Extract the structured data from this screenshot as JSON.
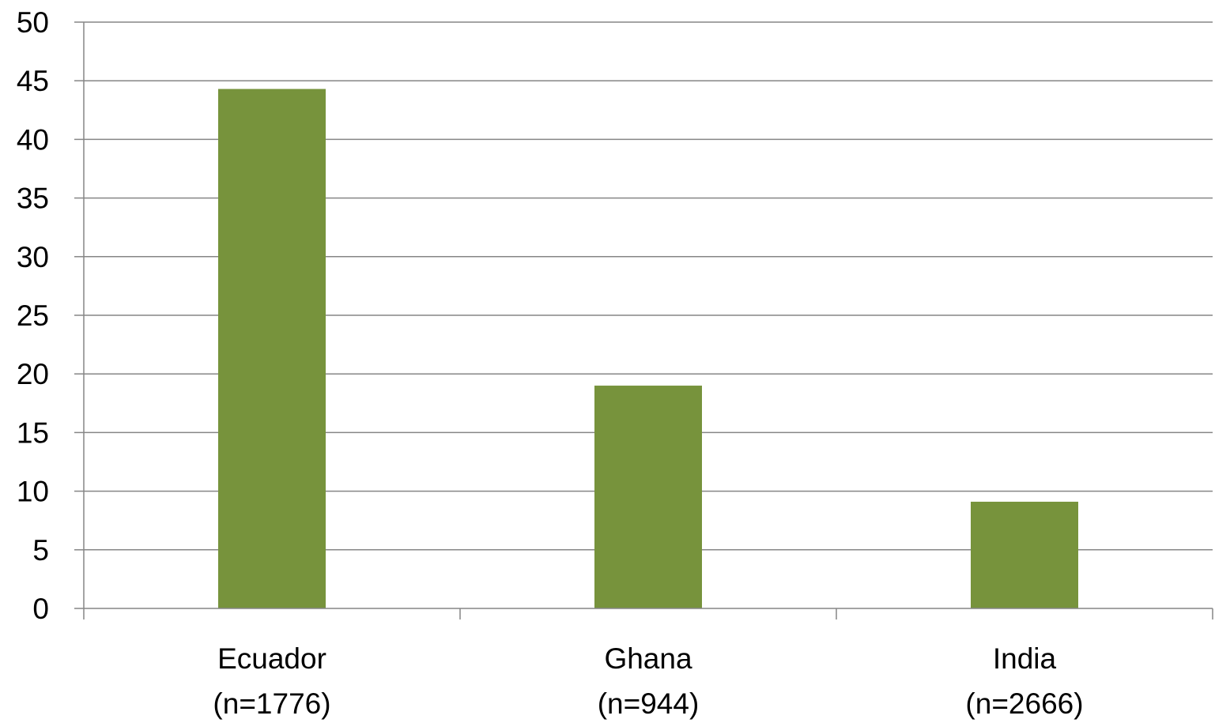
{
  "chart_data": {
    "type": "bar",
    "categories": [
      "Ecuador\n(n=1776)",
      "Ghana\n(n=944)",
      "India\n(n=2666)"
    ],
    "category_lines": [
      [
        "Ecuador",
        "(n=1776)"
      ],
      [
        "Ghana",
        "(n=944)"
      ],
      [
        "India",
        "(n=2666)"
      ]
    ],
    "values": [
      44.3,
      19.0,
      9.1
    ],
    "ylim": [
      0,
      50
    ],
    "yticks": [
      0,
      5,
      10,
      15,
      20,
      25,
      30,
      35,
      40,
      45,
      50
    ],
    "title": "",
    "xlabel": "",
    "ylabel": "",
    "grid": true,
    "legend": "none",
    "colors": {
      "bar": "#77933C",
      "grid": "#868686",
      "axis": "#868686",
      "text": "#000000"
    }
  }
}
